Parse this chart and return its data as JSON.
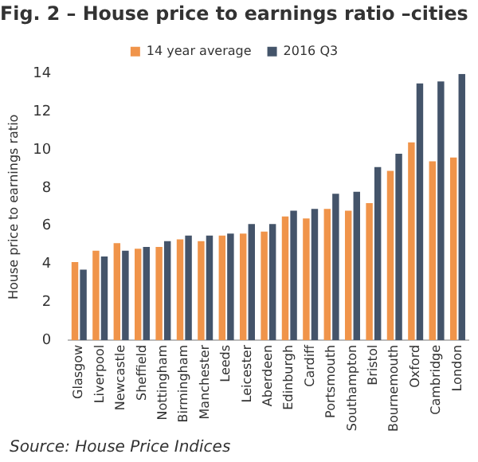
{
  "chart_data": {
    "type": "bar",
    "title": "Fig. 2 – House price to earnings ratio –cities",
    "ylabel": "House price to earnings ratio",
    "categories": [
      "Glasgow",
      "Liverpool",
      "Newcastle",
      "Sheffield",
      "Nottingham",
      "Birmingham",
      "Manchester",
      "Leeds",
      "Leicester",
      "Aberdeen",
      "Edinburgh",
      "Cardiff",
      "Portsmouth",
      "Southampton",
      "Bristol",
      "Bournemouth",
      "Oxford",
      "Cambridge",
      "London"
    ],
    "series": [
      {
        "name": "14 year average",
        "color": "#f0944a",
        "values": [
          4.1,
          4.7,
          5.1,
          4.8,
          4.9,
          5.3,
          5.2,
          5.5,
          5.6,
          5.7,
          6.5,
          6.4,
          6.9,
          6.8,
          7.2,
          8.9,
          10.4,
          9.4,
          9.6
        ]
      },
      {
        "name": "2016 Q3",
        "color": "#44546a",
        "values": [
          3.7,
          4.4,
          4.7,
          4.9,
          5.2,
          5.5,
          5.5,
          5.6,
          6.1,
          6.1,
          6.8,
          6.9,
          7.7,
          7.8,
          9.1,
          9.8,
          13.5,
          13.6,
          14.0
        ]
      }
    ],
    "ylim": [
      0,
      14
    ],
    "yticks": [
      0,
      2,
      4,
      6,
      8,
      10,
      12,
      14
    ],
    "grid": false,
    "legend": "top",
    "annotations": [
      "Source: House Price Indices"
    ]
  }
}
